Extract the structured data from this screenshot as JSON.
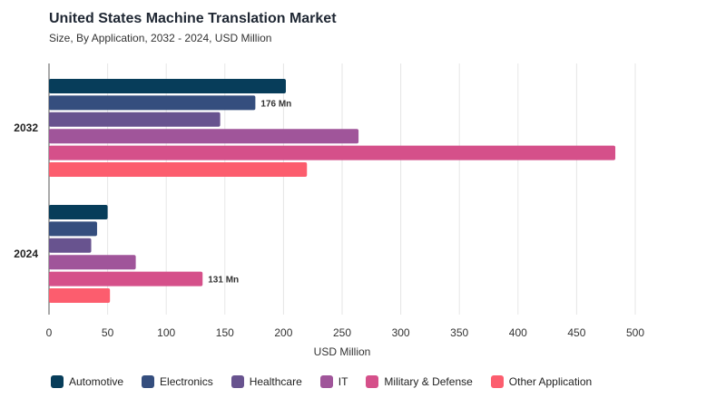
{
  "title": "United States Machine Translation Market",
  "subtitle": "Size, By Application, 2032 - 2024, USD Million",
  "chart_data": {
    "type": "bar",
    "orientation": "horizontal",
    "categories": [
      "2032",
      "2024"
    ],
    "series": [
      {
        "name": "Automotive",
        "color": "#073d5a",
        "values": [
          202,
          50
        ]
      },
      {
        "name": "Electronics",
        "color": "#354e7e",
        "values": [
          176,
          41
        ]
      },
      {
        "name": "Healthcare",
        "color": "#68538f",
        "values": [
          146,
          36
        ]
      },
      {
        "name": "IT",
        "color": "#a0559a",
        "values": [
          264,
          74
        ]
      },
      {
        "name": "Military & Defense",
        "color": "#d5508a",
        "values": [
          483,
          131
        ]
      },
      {
        "name": "Other Application",
        "color": "#fc5d6e",
        "values": [
          220,
          52
        ]
      }
    ],
    "annotations": [
      {
        "series": "Electronics",
        "category": "2032",
        "text": "176 Mn"
      },
      {
        "series": "Military & Defense",
        "category": "2024",
        "text": "131 Mn"
      }
    ],
    "xlabel": "USD Million",
    "xlim": [
      0,
      500
    ],
    "xticks": [
      "0",
      "50",
      "100",
      "150",
      "200",
      "250",
      "300",
      "350",
      "400",
      "450",
      "500"
    ],
    "grid": true,
    "legend_position": "bottom"
  }
}
